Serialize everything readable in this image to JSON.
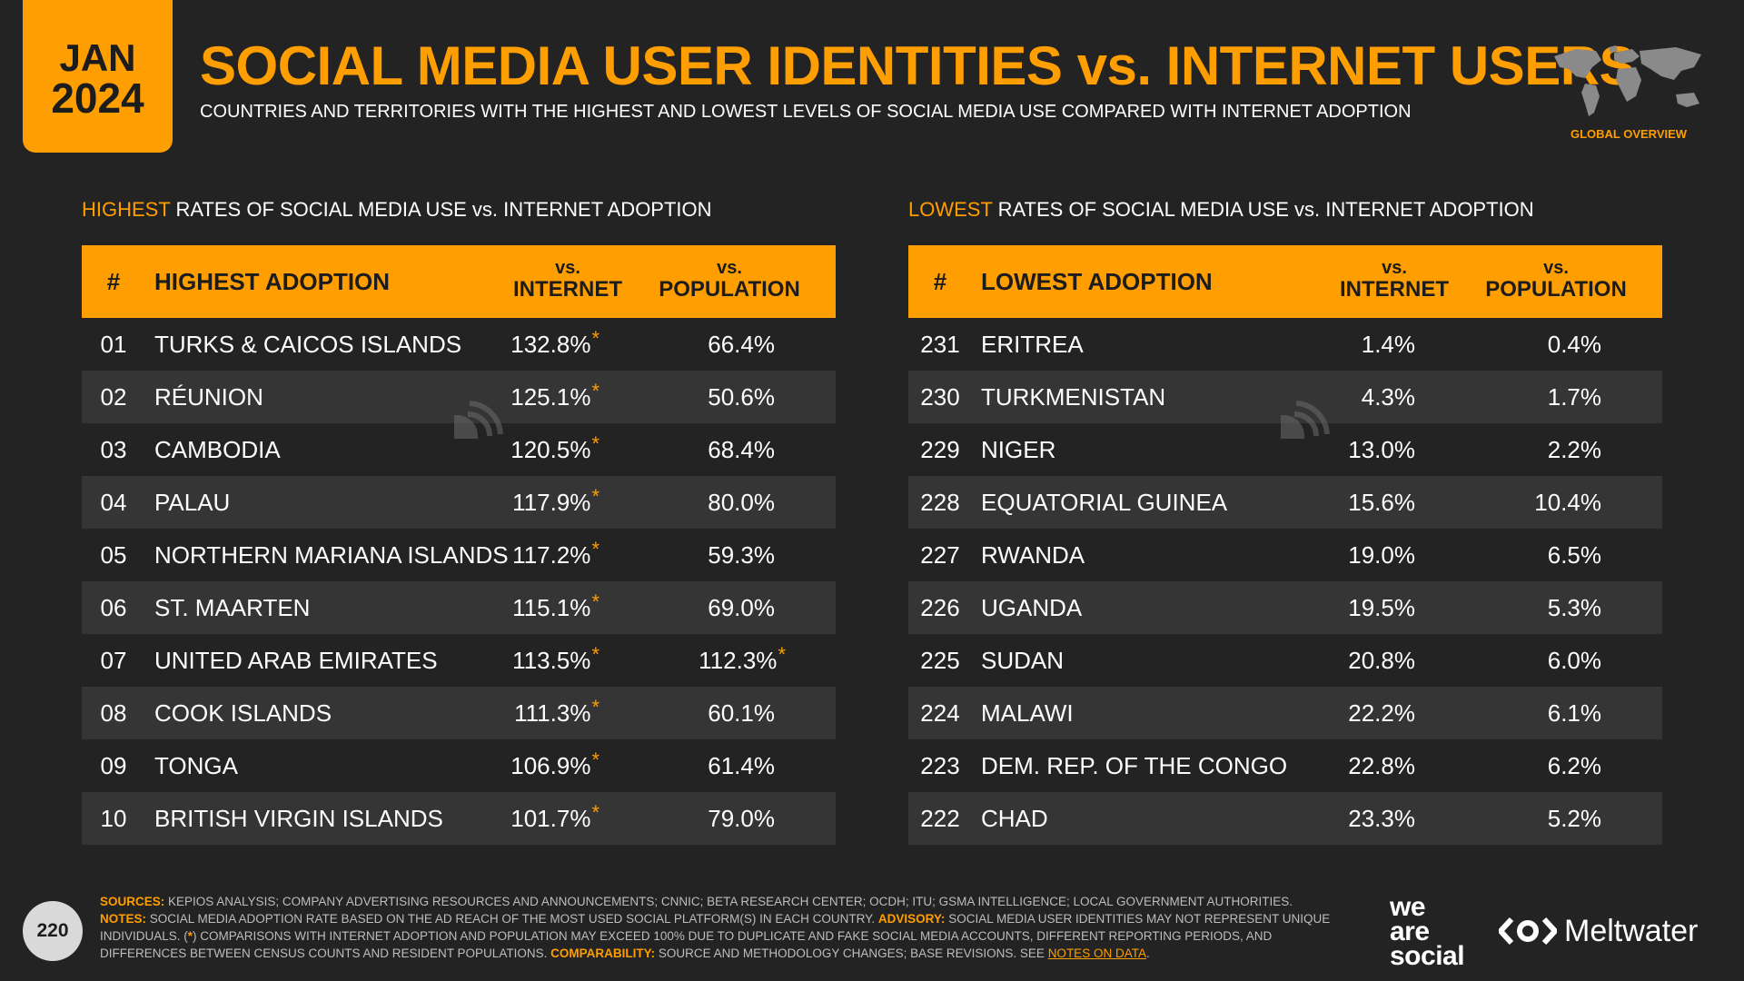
{
  "header": {
    "month": "JAN",
    "year": "2024",
    "title": "SOCIAL MEDIA USER IDENTITIES vs. INTERNET USERS",
    "subtitle": "COUNTRIES AND TERRITORIES WITH THE HIGHEST AND LOWEST LEVELS OF SOCIAL MEDIA USE COMPARED WITH INTERNET ADOPTION",
    "section_label": "GLOBAL OVERVIEW"
  },
  "highest": {
    "title_hl": "HIGHEST",
    "title_rest": " RATES OF SOCIAL MEDIA USE vs. INTERNET ADOPTION",
    "headers": {
      "num": "#",
      "name": "HIGHEST ADOPTION",
      "col1_top": "vs.",
      "col1_bottom": "INTERNET",
      "col2_top": "vs.",
      "col2_bottom": "POPULATION"
    },
    "rows": [
      {
        "num": "01",
        "name": "TURKS & CAICOS ISLANDS",
        "v1": "132.8%",
        "s1": "*",
        "v2": "66.4%",
        "s2": ""
      },
      {
        "num": "02",
        "name": "RÉUNION",
        "v1": "125.1%",
        "s1": "*",
        "v2": "50.6%",
        "s2": ""
      },
      {
        "num": "03",
        "name": "CAMBODIA",
        "v1": "120.5%",
        "s1": "*",
        "v2": "68.4%",
        "s2": ""
      },
      {
        "num": "04",
        "name": "PALAU",
        "v1": "117.9%",
        "s1": "*",
        "v2": "80.0%",
        "s2": ""
      },
      {
        "num": "05",
        "name": "NORTHERN MARIANA ISLANDS",
        "v1": "117.2%",
        "s1": "*",
        "v2": "59.3%",
        "s2": ""
      },
      {
        "num": "06",
        "name": "ST. MAARTEN",
        "v1": "115.1%",
        "s1": "*",
        "v2": "69.0%",
        "s2": ""
      },
      {
        "num": "07",
        "name": "UNITED ARAB EMIRATES",
        "v1": "113.5%",
        "s1": "*",
        "v2": "112.3%",
        "s2": "*"
      },
      {
        "num": "08",
        "name": "COOK ISLANDS",
        "v1": "111.3%",
        "s1": "*",
        "v2": "60.1%",
        "s2": ""
      },
      {
        "num": "09",
        "name": "TONGA",
        "v1": "106.9%",
        "s1": "*",
        "v2": "61.4%",
        "s2": ""
      },
      {
        "num": "10",
        "name": "BRITISH VIRGIN ISLANDS",
        "v1": "101.7%",
        "s1": "*",
        "v2": "79.0%",
        "s2": ""
      }
    ]
  },
  "lowest": {
    "title_hl": "LOWEST",
    "title_rest": " RATES OF SOCIAL MEDIA USE vs. INTERNET ADOPTION",
    "headers": {
      "num": "#",
      "name": "LOWEST ADOPTION",
      "col1_top": "vs.",
      "col1_bottom": "INTERNET",
      "col2_top": "vs.",
      "col2_bottom": "POPULATION"
    },
    "rows": [
      {
        "num": "231",
        "name": "ERITREA",
        "v1": "1.4%",
        "s1": "",
        "v2": "0.4%",
        "s2": ""
      },
      {
        "num": "230",
        "name": "TURKMENISTAN",
        "v1": "4.3%",
        "s1": "",
        "v2": "1.7%",
        "s2": ""
      },
      {
        "num": "229",
        "name": "NIGER",
        "v1": "13.0%",
        "s1": "",
        "v2": "2.2%",
        "s2": ""
      },
      {
        "num": "228",
        "name": "EQUATORIAL GUINEA",
        "v1": "15.6%",
        "s1": "",
        "v2": "10.4%",
        "s2": ""
      },
      {
        "num": "227",
        "name": "RWANDA",
        "v1": "19.0%",
        "s1": "",
        "v2": "6.5%",
        "s2": ""
      },
      {
        "num": "226",
        "name": "UGANDA",
        "v1": "19.5%",
        "s1": "",
        "v2": "5.3%",
        "s2": ""
      },
      {
        "num": "225",
        "name": "SUDAN",
        "v1": "20.8%",
        "s1": "",
        "v2": "6.0%",
        "s2": ""
      },
      {
        "num": "224",
        "name": "MALAWI",
        "v1": "22.2%",
        "s1": "",
        "v2": "6.1%",
        "s2": ""
      },
      {
        "num": "223",
        "name": "DEM. REP. OF THE CONGO",
        "v1": "22.8%",
        "s1": "",
        "v2": "6.2%",
        "s2": ""
      },
      {
        "num": "222",
        "name": "CHAD",
        "v1": "23.3%",
        "s1": "",
        "v2": "5.2%",
        "s2": ""
      }
    ]
  },
  "footer": {
    "sources_k": "SOURCES:",
    "sources": " KEPIOS ANALYSIS; COMPANY ADVERTISING RESOURCES AND ANNOUNCEMENTS; CNNIC; BETA RESEARCH CENTER; OCDH; ITU; GSMA INTELLIGENCE; LOCAL GOVERNMENT AUTHORITIES.",
    "notes_k": "NOTES:",
    "notes": " SOCIAL MEDIA ADOPTION RATE BASED ON THE AD REACH OF THE MOST USED SOCIAL PLATFORM(S) IN EACH COUNTRY. ",
    "advisory_k": "ADVISORY:",
    "advisory": " SOCIAL MEDIA USER IDENTITIES MAY NOT REPRESENT UNIQUE INDIVIDUALS. (",
    "star": "*",
    "advisory2": ") COMPARISONS WITH INTERNET ADOPTION AND POPULATION MAY EXCEED 100% DUE TO DUPLICATE AND FAKE SOCIAL MEDIA ACCOUNTS, DIFFERENT REPORTING PERIODS, AND DIFFERENCES BETWEEN CENSUS COUNTS AND RESIDENT POPULATIONS. ",
    "comparability_k": "COMPARABILITY:",
    "comparability": " SOURCE AND METHODOLOGY CHANGES; BASE REVISIONS. SEE ",
    "link": "NOTES ON DATA",
    "end": "."
  },
  "page_number": "220",
  "brand": {
    "was1": "we",
    "was2": "are",
    "was3": "social",
    "meltwater": "Meltwater"
  },
  "icons": [
    "world-map-icon",
    "watermark-icon",
    "meltwater-logo-icon"
  ]
}
